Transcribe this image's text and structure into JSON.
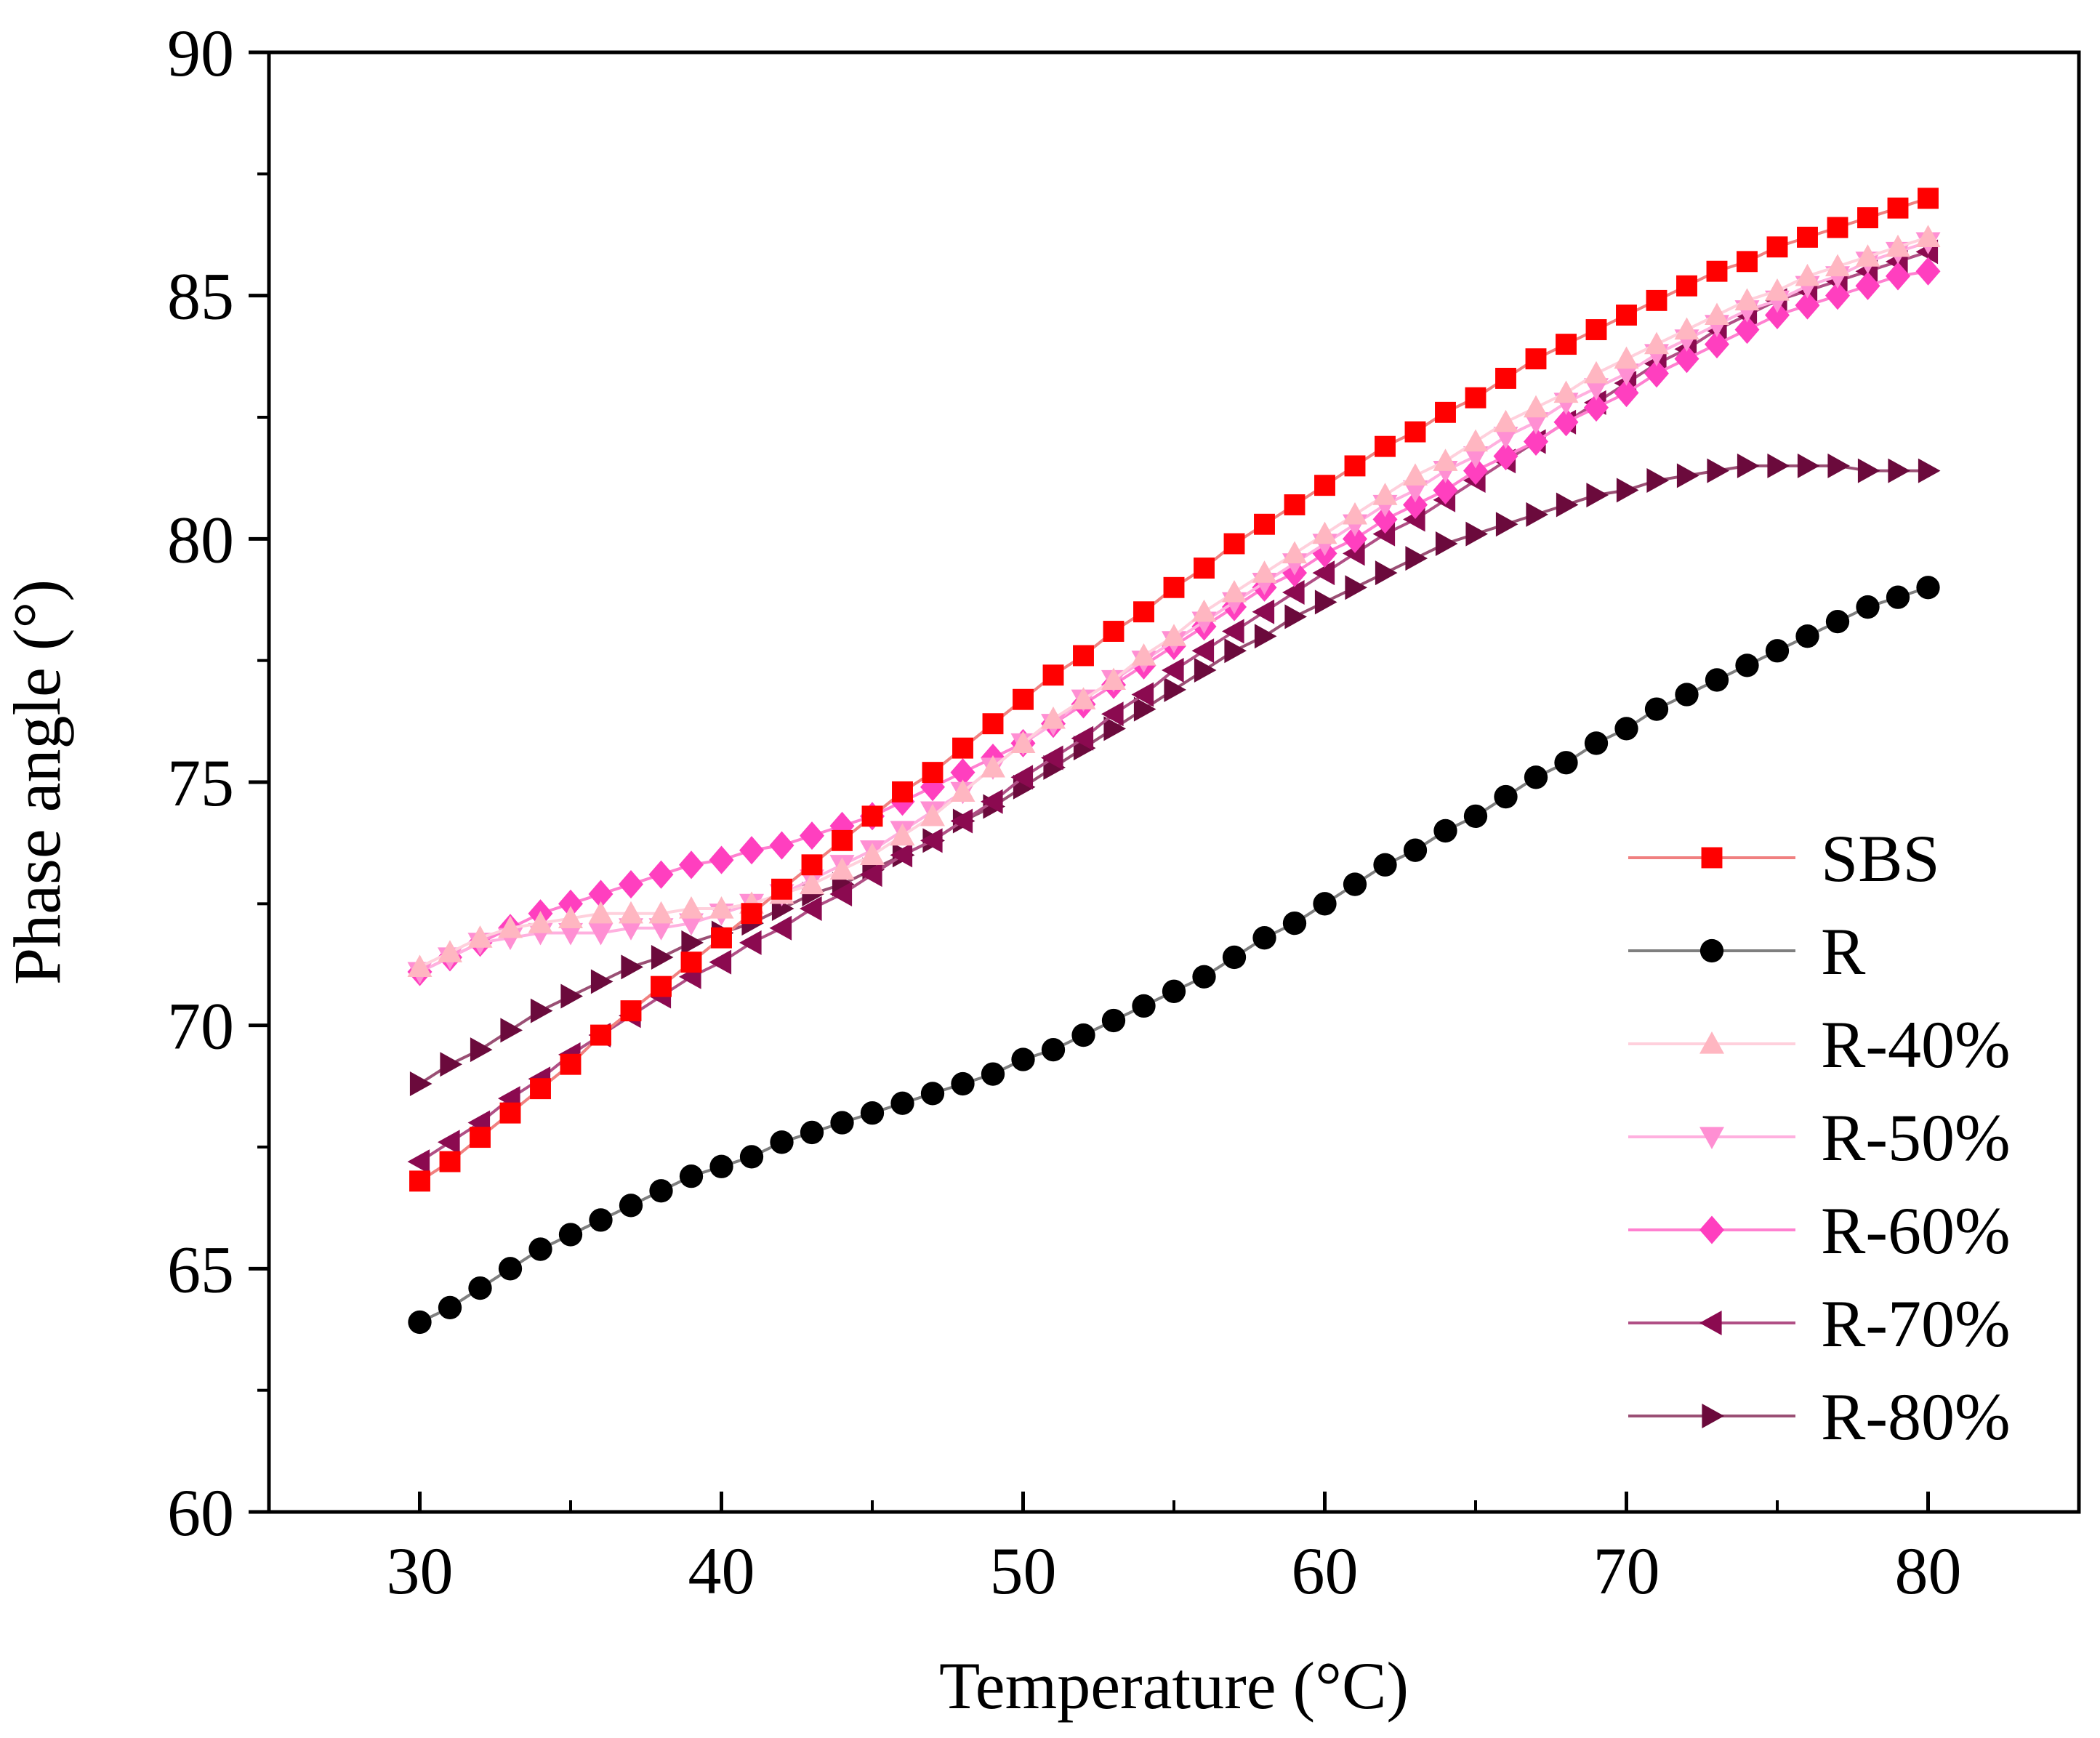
{
  "chart_data": {
    "type": "line",
    "xlabel": "Temperature (°C)",
    "ylabel": "Phase angle (°)",
    "xlim": [
      25,
      85
    ],
    "ylim": [
      60,
      90
    ],
    "xticks": [
      "30",
      "40",
      "50",
      "60",
      "70",
      "80"
    ],
    "yticks": [
      "60",
      "65",
      "70",
      "75",
      "80",
      "85",
      "90"
    ],
    "grid": false,
    "legend_position": "bottom-right",
    "x": [
      30,
      31,
      32,
      33,
      34,
      35,
      36,
      37,
      38,
      39,
      40,
      41,
      42,
      43,
      44,
      45,
      46,
      47,
      48,
      49,
      50,
      51,
      52,
      53,
      54,
      55,
      56,
      57,
      58,
      59,
      60,
      61,
      62,
      63,
      64,
      65,
      66,
      67,
      68,
      69,
      70,
      71,
      72,
      73,
      74,
      75,
      76,
      77,
      78,
      79,
      80
    ],
    "series": [
      {
        "name": "SBS",
        "marker": "square",
        "color": "#ff0000",
        "line_color": "#f08080",
        "values": [
          66.8,
          67.2,
          67.7,
          68.2,
          68.7,
          69.2,
          69.8,
          70.3,
          70.8,
          71.3,
          71.8,
          72.3,
          72.8,
          73.3,
          73.8,
          74.3,
          74.8,
          75.2,
          75.7,
          76.2,
          76.7,
          77.2,
          77.6,
          78.1,
          78.5,
          79.0,
          79.4,
          79.9,
          80.3,
          80.7,
          81.1,
          81.5,
          81.9,
          82.2,
          82.6,
          82.9,
          83.3,
          83.7,
          84.0,
          84.3,
          84.6,
          84.9,
          85.2,
          85.5,
          85.7,
          86.0,
          86.2,
          86.4,
          86.6,
          86.8,
          87.0
        ]
      },
      {
        "name": "R",
        "marker": "circle",
        "color": "#000000",
        "line_color": "#7f7f7f",
        "values": [
          63.9,
          64.2,
          64.6,
          65.0,
          65.4,
          65.7,
          66.0,
          66.3,
          66.6,
          66.9,
          67.1,
          67.3,
          67.6,
          67.8,
          68.0,
          68.2,
          68.4,
          68.6,
          68.8,
          69.0,
          69.3,
          69.5,
          69.8,
          70.1,
          70.4,
          70.7,
          71.0,
          71.4,
          71.8,
          72.1,
          72.5,
          72.9,
          73.3,
          73.6,
          74.0,
          74.3,
          74.7,
          75.1,
          75.4,
          75.8,
          76.1,
          76.5,
          76.8,
          77.1,
          77.4,
          77.7,
          78.0,
          78.3,
          78.6,
          78.8,
          79.0
        ]
      },
      {
        "name": "R-40%",
        "marker": "triangle-up",
        "color": "#ffb6c1",
        "line_color": "#ffd0dc",
        "values": [
          71.2,
          71.5,
          71.8,
          72.0,
          72.1,
          72.2,
          72.3,
          72.3,
          72.3,
          72.4,
          72.4,
          72.5,
          72.7,
          72.9,
          73.2,
          73.5,
          73.9,
          74.3,
          74.8,
          75.3,
          75.8,
          76.3,
          76.7,
          77.1,
          77.6,
          78.0,
          78.5,
          78.9,
          79.3,
          79.7,
          80.1,
          80.5,
          80.9,
          81.3,
          81.6,
          82.0,
          82.4,
          82.7,
          83.0,
          83.4,
          83.7,
          84.0,
          84.3,
          84.6,
          84.9,
          85.1,
          85.4,
          85.6,
          85.8,
          86.0,
          86.2
        ]
      },
      {
        "name": "R-50%",
        "marker": "triangle-down",
        "color": "#ff8fd3",
        "line_color": "#ffb0df",
        "values": [
          71.1,
          71.4,
          71.7,
          71.8,
          71.9,
          71.9,
          71.9,
          72.0,
          72.0,
          72.1,
          72.3,
          72.5,
          72.7,
          73.0,
          73.3,
          73.6,
          74.0,
          74.4,
          74.8,
          75.3,
          75.8,
          76.2,
          76.7,
          77.1,
          77.5,
          77.9,
          78.3,
          78.7,
          79.1,
          79.5,
          79.9,
          80.3,
          80.7,
          81.0,
          81.4,
          81.7,
          82.1,
          82.4,
          82.8,
          83.1,
          83.4,
          83.8,
          84.1,
          84.4,
          84.7,
          84.9,
          85.2,
          85.4,
          85.7,
          85.9,
          86.1
        ]
      },
      {
        "name": "R-60%",
        "marker": "diamond",
        "color": "#ff3fbf",
        "line_color": "#ff80d0",
        "values": [
          71.1,
          71.4,
          71.7,
          72.0,
          72.3,
          72.5,
          72.7,
          72.9,
          73.1,
          73.3,
          73.4,
          73.6,
          73.7,
          73.9,
          74.1,
          74.3,
          74.6,
          74.9,
          75.2,
          75.5,
          75.8,
          76.2,
          76.6,
          77.0,
          77.4,
          77.8,
          78.2,
          78.6,
          79.0,
          79.3,
          79.7,
          80.0,
          80.4,
          80.7,
          81.0,
          81.4,
          81.7,
          82.0,
          82.4,
          82.7,
          83.0,
          83.4,
          83.7,
          84.0,
          84.3,
          84.6,
          84.8,
          85.0,
          85.2,
          85.4,
          85.5
        ]
      },
      {
        "name": "R-70%",
        "marker": "triangle-left",
        "color": "#8b0a50",
        "line_color": "#b04f85",
        "values": [
          67.2,
          67.6,
          68.0,
          68.5,
          68.9,
          69.4,
          69.8,
          70.2,
          70.6,
          71.0,
          71.3,
          71.7,
          72.0,
          72.4,
          72.7,
          73.1,
          73.5,
          73.8,
          74.2,
          74.6,
          75.1,
          75.5,
          75.9,
          76.4,
          76.8,
          77.3,
          77.7,
          78.1,
          78.5,
          78.9,
          79.3,
          79.7,
          80.1,
          80.4,
          80.8,
          81.2,
          81.6,
          82.0,
          82.4,
          82.8,
          83.2,
          83.6,
          83.9,
          84.3,
          84.6,
          84.9,
          85.1,
          85.3,
          85.5,
          85.7,
          85.9
        ]
      },
      {
        "name": "R-80%",
        "marker": "triangle-right",
        "color": "#6b0a3c",
        "line_color": "#9a4f74",
        "values": [
          68.8,
          69.2,
          69.5,
          69.9,
          70.3,
          70.6,
          70.9,
          71.2,
          71.4,
          71.7,
          71.9,
          72.1,
          72.4,
          72.7,
          72.9,
          73.2,
          73.5,
          73.8,
          74.2,
          74.5,
          74.9,
          75.3,
          75.7,
          76.1,
          76.5,
          76.9,
          77.3,
          77.7,
          78.0,
          78.4,
          78.7,
          79.0,
          79.3,
          79.6,
          79.9,
          80.1,
          80.3,
          80.5,
          80.7,
          80.9,
          81.0,
          81.2,
          81.3,
          81.4,
          81.5,
          81.5,
          81.5,
          81.5,
          81.4,
          81.4,
          81.4
        ]
      }
    ]
  }
}
